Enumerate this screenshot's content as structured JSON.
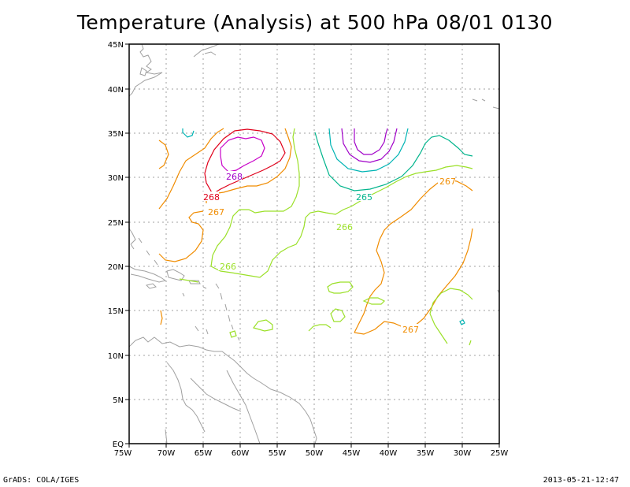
{
  "title": "Temperature (Analysis) at 500 hPa 08/01 0130",
  "footer": {
    "left": "GrADS: COLA/IGES",
    "right": "2013-05-21-12:47"
  },
  "axes": {
    "lon_labels": [
      "75W",
      "70W",
      "65W",
      "60W",
      "55W",
      "50W",
      "45W",
      "40W",
      "35W",
      "30W",
      "25W"
    ],
    "lat_labels": [
      "EQ",
      "5N",
      "10N",
      "15N",
      "20N",
      "25N",
      "30N",
      "35N",
      "40N",
      "45N"
    ]
  },
  "contour_labels": [
    {
      "text": "268",
      "color": "#a000c8"
    },
    {
      "text": "268",
      "color": "#e0001a"
    },
    {
      "text": "267",
      "color": "#f08c00"
    },
    {
      "text": "265",
      "color": "#00b48c"
    },
    {
      "text": "266",
      "color": "#9be028"
    },
    {
      "text": "266",
      "color": "#9be028"
    },
    {
      "text": "267",
      "color": "#f08c00"
    },
    {
      "text": "267",
      "color": "#f08c00"
    }
  ],
  "colors": {
    "purple": "#a000c8",
    "magenta": "#c800c8",
    "red": "#e0001a",
    "orange": "#f08c00",
    "yellowgreen": "#9be028",
    "teal": "#00b48c",
    "cyan": "#00b4b4",
    "coast": "#a0a0a0",
    "grid": "#a0a0a0"
  }
}
